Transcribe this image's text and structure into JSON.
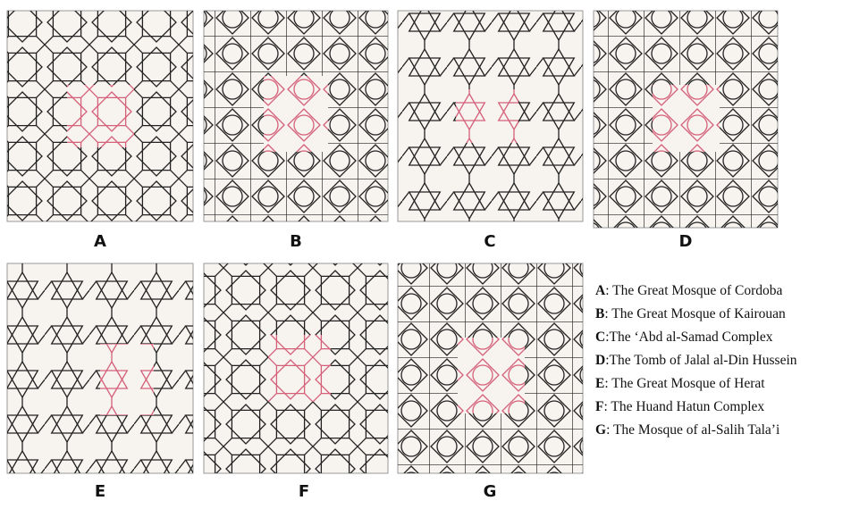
{
  "panels": [
    {
      "label": "A"
    },
    {
      "label": "B"
    },
    {
      "label": "C"
    },
    {
      "label": "D"
    },
    {
      "label": "E"
    },
    {
      "label": "F"
    },
    {
      "label": "G"
    }
  ],
  "legend": [
    {
      "key": "A",
      "text": ": The Great Mosque of Cordoba"
    },
    {
      "key": "B",
      "text": ": The Great Mosque of Kairouan"
    },
    {
      "key": "C",
      "text": ":The ‘Abd al-Samad Complex"
    },
    {
      "key": "D",
      "text": ":The Tomb of Jalal al-Din Hussein"
    },
    {
      "key": "E",
      "text": ": The Great Mosque of Herat"
    },
    {
      "key": "F",
      "text": ": The Huand Hatun Complex"
    },
    {
      "key": "G",
      "text": ": The Mosque of al-Salih Tala’i"
    }
  ]
}
